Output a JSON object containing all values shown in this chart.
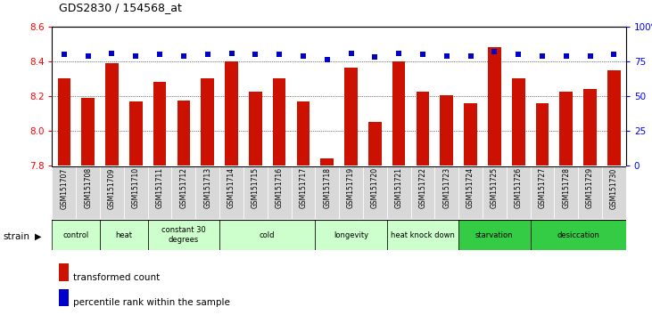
{
  "title": "GDS2830 / 154568_at",
  "samples": [
    "GSM151707",
    "GSM151708",
    "GSM151709",
    "GSM151710",
    "GSM151711",
    "GSM151712",
    "GSM151713",
    "GSM151714",
    "GSM151715",
    "GSM151716",
    "GSM151717",
    "GSM151718",
    "GSM151719",
    "GSM151720",
    "GSM151721",
    "GSM151722",
    "GSM151723",
    "GSM151724",
    "GSM151725",
    "GSM151726",
    "GSM151727",
    "GSM151728",
    "GSM151729",
    "GSM151730"
  ],
  "bar_values": [
    8.3,
    8.19,
    8.39,
    8.17,
    8.28,
    8.175,
    8.3,
    8.4,
    8.225,
    8.3,
    8.17,
    7.84,
    8.365,
    8.05,
    8.4,
    8.225,
    8.205,
    8.16,
    8.48,
    8.3,
    8.16,
    8.225,
    8.24,
    8.35
  ],
  "percentile_values": [
    80,
    79,
    81,
    79,
    80,
    79,
    80,
    81,
    80,
    80,
    79,
    76,
    81,
    78,
    81,
    80,
    79,
    79,
    82,
    80,
    79,
    79,
    79,
    80
  ],
  "bar_color": "#cc1100",
  "percentile_color": "#0000cc",
  "ylim_left": [
    7.8,
    8.6
  ],
  "ylim_right": [
    0,
    100
  ],
  "yticks_left": [
    7.8,
    8.0,
    8.2,
    8.4,
    8.6
  ],
  "yticks_right": [
    0,
    25,
    50,
    75,
    100
  ],
  "groups": [
    {
      "label": "control",
      "start": 0,
      "end": 2,
      "color": "#ccffcc"
    },
    {
      "label": "heat",
      "start": 2,
      "end": 4,
      "color": "#ccffcc"
    },
    {
      "label": "constant 30\ndegrees",
      "start": 4,
      "end": 7,
      "color": "#ccffcc"
    },
    {
      "label": "cold",
      "start": 7,
      "end": 11,
      "color": "#ccffcc"
    },
    {
      "label": "longevity",
      "start": 11,
      "end": 14,
      "color": "#ccffcc"
    },
    {
      "label": "heat knock down",
      "start": 14,
      "end": 17,
      "color": "#ccffcc"
    },
    {
      "label": "starvation",
      "start": 17,
      "end": 20,
      "color": "#33cc44"
    },
    {
      "label": "desiccation",
      "start": 20,
      "end": 24,
      "color": "#33cc44"
    }
  ],
  "legend_bar_label": "transformed count",
  "legend_pct_label": "percentile rank within the sample",
  "strain_label": "strain"
}
